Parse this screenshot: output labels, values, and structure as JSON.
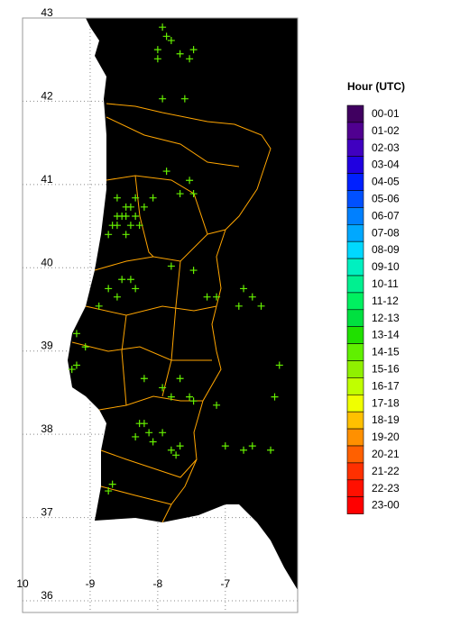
{
  "chart_data": {
    "type": "scatter",
    "legend_title": "Hour (UTC)",
    "legend": [
      {
        "label": "00-01",
        "color": "#400060"
      },
      {
        "label": "01-02",
        "color": "#500090"
      },
      {
        "label": "02-03",
        "color": "#4000c0"
      },
      {
        "label": "03-04",
        "color": "#2000e0"
      },
      {
        "label": "04-05",
        "color": "#0020ff"
      },
      {
        "label": "05-06",
        "color": "#0050ff"
      },
      {
        "label": "06-07",
        "color": "#0080ff"
      },
      {
        "label": "07-08",
        "color": "#00a8ff"
      },
      {
        "label": "08-09",
        "color": "#00d8ff"
      },
      {
        "label": "09-10",
        "color": "#00f0c0"
      },
      {
        "label": "10-11",
        "color": "#00f090"
      },
      {
        "label": "11-12",
        "color": "#00f060"
      },
      {
        "label": "12-13",
        "color": "#00e040"
      },
      {
        "label": "13-14",
        "color": "#20e000"
      },
      {
        "label": "14-15",
        "color": "#60f000"
      },
      {
        "label": "15-16",
        "color": "#90f000"
      },
      {
        "label": "16-17",
        "color": "#c0ff00"
      },
      {
        "label": "17-18",
        "color": "#f0ff00"
      },
      {
        "label": "18-19",
        "color": "#ffc000"
      },
      {
        "label": "19-20",
        "color": "#ff9000"
      },
      {
        "label": "20-21",
        "color": "#ff6000"
      },
      {
        "label": "21-22",
        "color": "#ff3000"
      },
      {
        "label": "22-23",
        "color": "#ff1000"
      },
      {
        "label": "23-00",
        "color": "#ff0000"
      }
    ],
    "xlim": [
      -10,
      -5.93
    ],
    "ylim": [
      35.86,
      43
    ],
    "xticks": [
      {
        "value": -10,
        "label": "10"
      },
      -9,
      -8,
      -7
    ],
    "yticks": [
      36,
      37,
      38,
      39,
      40,
      41,
      42,
      43
    ],
    "grid": true,
    "color": "#66f000",
    "x": [
      -7.93,
      -7.8,
      -7.67,
      -8.0,
      -7.53,
      -7.87,
      -7.47,
      -8.0,
      -7.6,
      -7.93,
      -8.6,
      -8.47,
      -8.33,
      -8.6,
      -8.47,
      -8.2,
      -8.33,
      -8.53,
      -8.67,
      -8.4,
      -8.27,
      -8.73,
      -8.47,
      -8.07,
      -8.6,
      -8.4,
      -7.87,
      -7.53,
      -7.47,
      -7.67,
      -8.73,
      -8.53,
      -8.87,
      -8.33,
      -7.8,
      -7.47,
      -8.6,
      -8.4,
      -7.13,
      -6.8,
      -6.47,
      -6.73,
      -6.6,
      -7.27,
      -9.2,
      -9.27,
      -9.07,
      -9.2,
      -7.93,
      -7.47,
      -7.67,
      -7.13,
      -7.53,
      -7.8,
      -8.2,
      -8.2,
      -7.93,
      -7.73,
      -8.07,
      -8.33,
      -8.13,
      -7.8,
      -7.67,
      -8.27,
      -7.0,
      -6.73,
      -6.33,
      -6.6,
      -8.73,
      -8.67,
      -6.2,
      -6.27
    ],
    "values": [
      42.89,
      42.73,
      42.57,
      42.62,
      42.51,
      42.78,
      42.62,
      42.51,
      42.03,
      42.03,
      40.84,
      40.73,
      40.62,
      40.51,
      40.4,
      40.73,
      40.84,
      40.62,
      40.51,
      40.73,
      40.51,
      40.4,
      40.62,
      40.84,
      40.62,
      40.51,
      41.16,
      41.05,
      40.89,
      40.89,
      39.75,
      39.86,
      39.54,
      39.75,
      40.02,
      39.97,
      39.65,
      39.86,
      39.65,
      39.54,
      39.54,
      39.75,
      39.65,
      39.65,
      39.21,
      38.78,
      39.05,
      38.83,
      38.56,
      38.4,
      38.67,
      38.35,
      38.45,
      38.45,
      38.67,
      38.13,
      38.02,
      37.75,
      37.91,
      37.97,
      38.02,
      37.81,
      37.86,
      38.13,
      37.86,
      37.81,
      37.81,
      37.86,
      37.32,
      37.4,
      38.83,
      38.45
    ]
  }
}
